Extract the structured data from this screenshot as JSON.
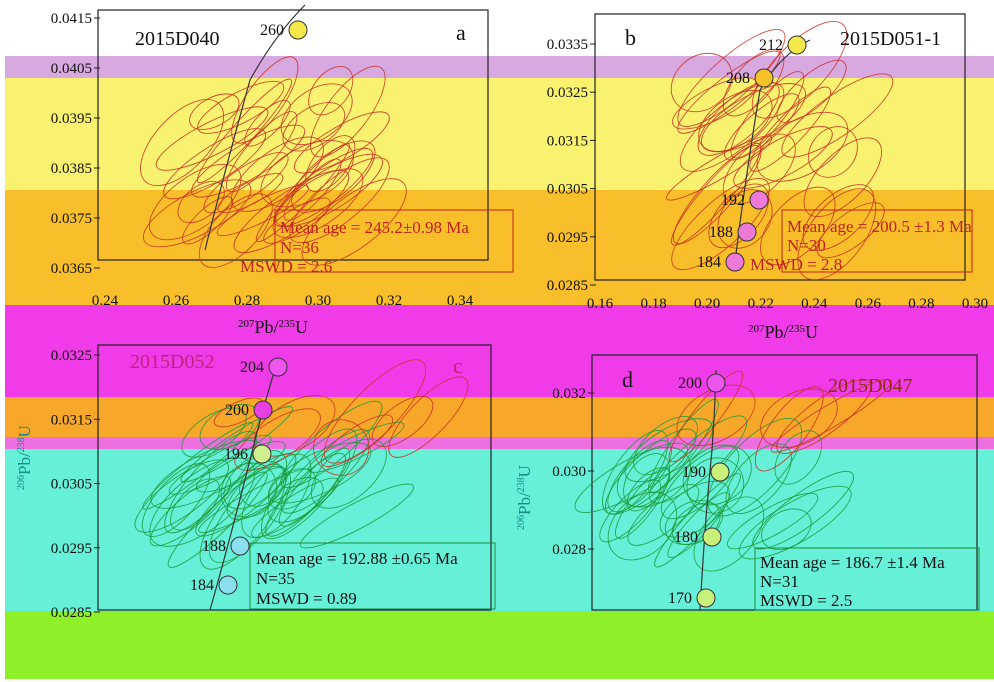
{
  "colors": {
    "yellow": "#f5e84a",
    "lavender": "#d8a8e0",
    "orange": "#f7b733",
    "magenta": "#f03ce8",
    "pink": "#ee55ee",
    "cyan": "#62f0d4",
    "lime": "#8ff02a",
    "red_ellipse": "#d01818",
    "green_ellipse": "#1a9a3a"
  },
  "chart_data": [
    {
      "type": "scatter",
      "panel": "a",
      "sample": "2015D040",
      "xlabel": "207Pb/235U",
      "ylabel": "206Pb/238U",
      "xlim": [
        0.24,
        0.34
      ],
      "ylim": [
        0.0365,
        0.0415
      ],
      "x_ticks": [
        "0.24",
        "0.26",
        "0.28",
        "0.30",
        "0.32",
        "0.34"
      ],
      "y_ticks": [
        "0.0365",
        "0.0375",
        "0.0385",
        "0.0395",
        "0.0405",
        "0.0415"
      ],
      "concordia_ages": [
        "260"
      ],
      "stats": {
        "mean_age": "Mean age = 245.2±0.98 Ma",
        "n": "N=36",
        "mswd": "MSWD = 2.6"
      }
    },
    {
      "type": "scatter",
      "panel": "b",
      "sample": "2015D051-1",
      "xlabel": "207Pb/235U",
      "ylabel": "206Pb/238U",
      "xlim": [
        0.16,
        0.3
      ],
      "ylim": [
        0.0285,
        0.0335
      ],
      "x_ticks": [
        "0.16",
        "0.18",
        "0.20",
        "0.22",
        "0.24",
        "0.26",
        "0.28",
        "0.30"
      ],
      "y_ticks": [
        "0.0285",
        "0.0295",
        "0.0305",
        "0.0315",
        "0.0325",
        "0.0335"
      ],
      "concordia_ages": [
        "212",
        "208",
        "192",
        "188",
        "184"
      ],
      "stats": {
        "mean_age": "Mean age = 200.5 ±1.3 Ma",
        "n": "N=30",
        "mswd": "MSWD = 2.8"
      }
    },
    {
      "type": "scatter",
      "panel": "c",
      "sample": "2015D052",
      "xlabel": "207Pb/235U",
      "ylabel": "206Pb/238U",
      "ylim": [
        0.0285,
        0.0325
      ],
      "y_ticks": [
        "0.0285",
        "0.0295",
        "0.0305",
        "0.0315",
        "0.0325"
      ],
      "concordia_ages": [
        "204",
        "200",
        "196",
        "188",
        "184"
      ],
      "stats": {
        "mean_age": "Mean age = 192.88 ±0.65 Ma",
        "n": "N=35",
        "mswd": "MSWD = 0.89"
      }
    },
    {
      "type": "scatter",
      "panel": "d",
      "sample": "2015D047",
      "xlabel": "207Pb/235U",
      "ylabel": "206Pb/238U",
      "y_ticks": [
        "0.028",
        "0.030",
        "0.032"
      ],
      "concordia_ages": [
        "200",
        "190",
        "180",
        "170"
      ],
      "stats": {
        "mean_age": "Mean age = 186.7 ±1.4 Ma",
        "n": "N=31",
        "mswd": "MSWD = 2.5"
      }
    }
  ]
}
